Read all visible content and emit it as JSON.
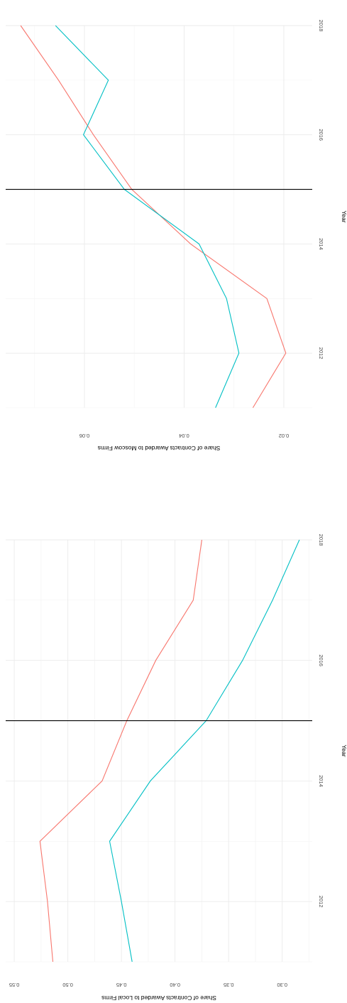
{
  "chart_data": [
    {
      "type": "line",
      "xlabel": "Year",
      "ylabel": "Share of Contracts Awarded to Local Firms",
      "xlim": [
        2011,
        2018
      ],
      "ylim": [
        0.272,
        0.558
      ],
      "x_ticks": [
        2012,
        2014,
        2016,
        2018
      ],
      "y_ticks": [
        0.3,
        0.35,
        0.4,
        0.45,
        0.5,
        0.55
      ],
      "y_tick_labels": [
        "0.30",
        "0.35",
        "0.40",
        "0.45",
        "0.50",
        "0.55"
      ],
      "vline": 2015,
      "grid": true,
      "series": [
        {
          "color": "#F8766D",
          "x": [
            2011,
            2012,
            2013,
            2014,
            2015,
            2016,
            2017,
            2018
          ],
          "values": [
            0.514,
            0.519,
            0.526,
            0.468,
            0.445,
            0.418,
            0.383,
            0.375
          ]
        },
        {
          "color": "#00BFC4",
          "x": [
            2011,
            2012,
            2013,
            2014,
            2015,
            2016,
            2017,
            2018
          ],
          "values": [
            0.44,
            0.45,
            0.461,
            0.423,
            0.371,
            0.337,
            0.309,
            0.284
          ]
        }
      ]
    },
    {
      "type": "line",
      "xlabel": "Year",
      "ylabel": "Share of Contracts Awarded to Moscow Firms",
      "xlim": [
        2011,
        2018
      ],
      "ylim": [
        0.0143,
        0.0758
      ],
      "x_ticks": [
        2012,
        2014,
        2016,
        2018
      ],
      "y_ticks": [
        0.02,
        0.04,
        0.06
      ],
      "y_tick_labels": [
        "0.02",
        "0.04",
        "0.06"
      ],
      "vline": 2015,
      "grid": true,
      "series": [
        {
          "color": "#F8766D",
          "x": [
            2011,
            2012,
            2013,
            2014,
            2015,
            2016,
            2017,
            2018
          ],
          "values": [
            0.0262,
            0.0196,
            0.0234,
            0.0387,
            0.0505,
            0.0582,
            0.0652,
            0.0728
          ]
        },
        {
          "color": "#00BFC4",
          "x": [
            2011,
            2012,
            2013,
            2014,
            2015,
            2016,
            2017,
            2018
          ],
          "values": [
            0.0337,
            0.029,
            0.0315,
            0.037,
            0.052,
            0.0602,
            0.0552,
            0.0658
          ]
        }
      ]
    }
  ]
}
